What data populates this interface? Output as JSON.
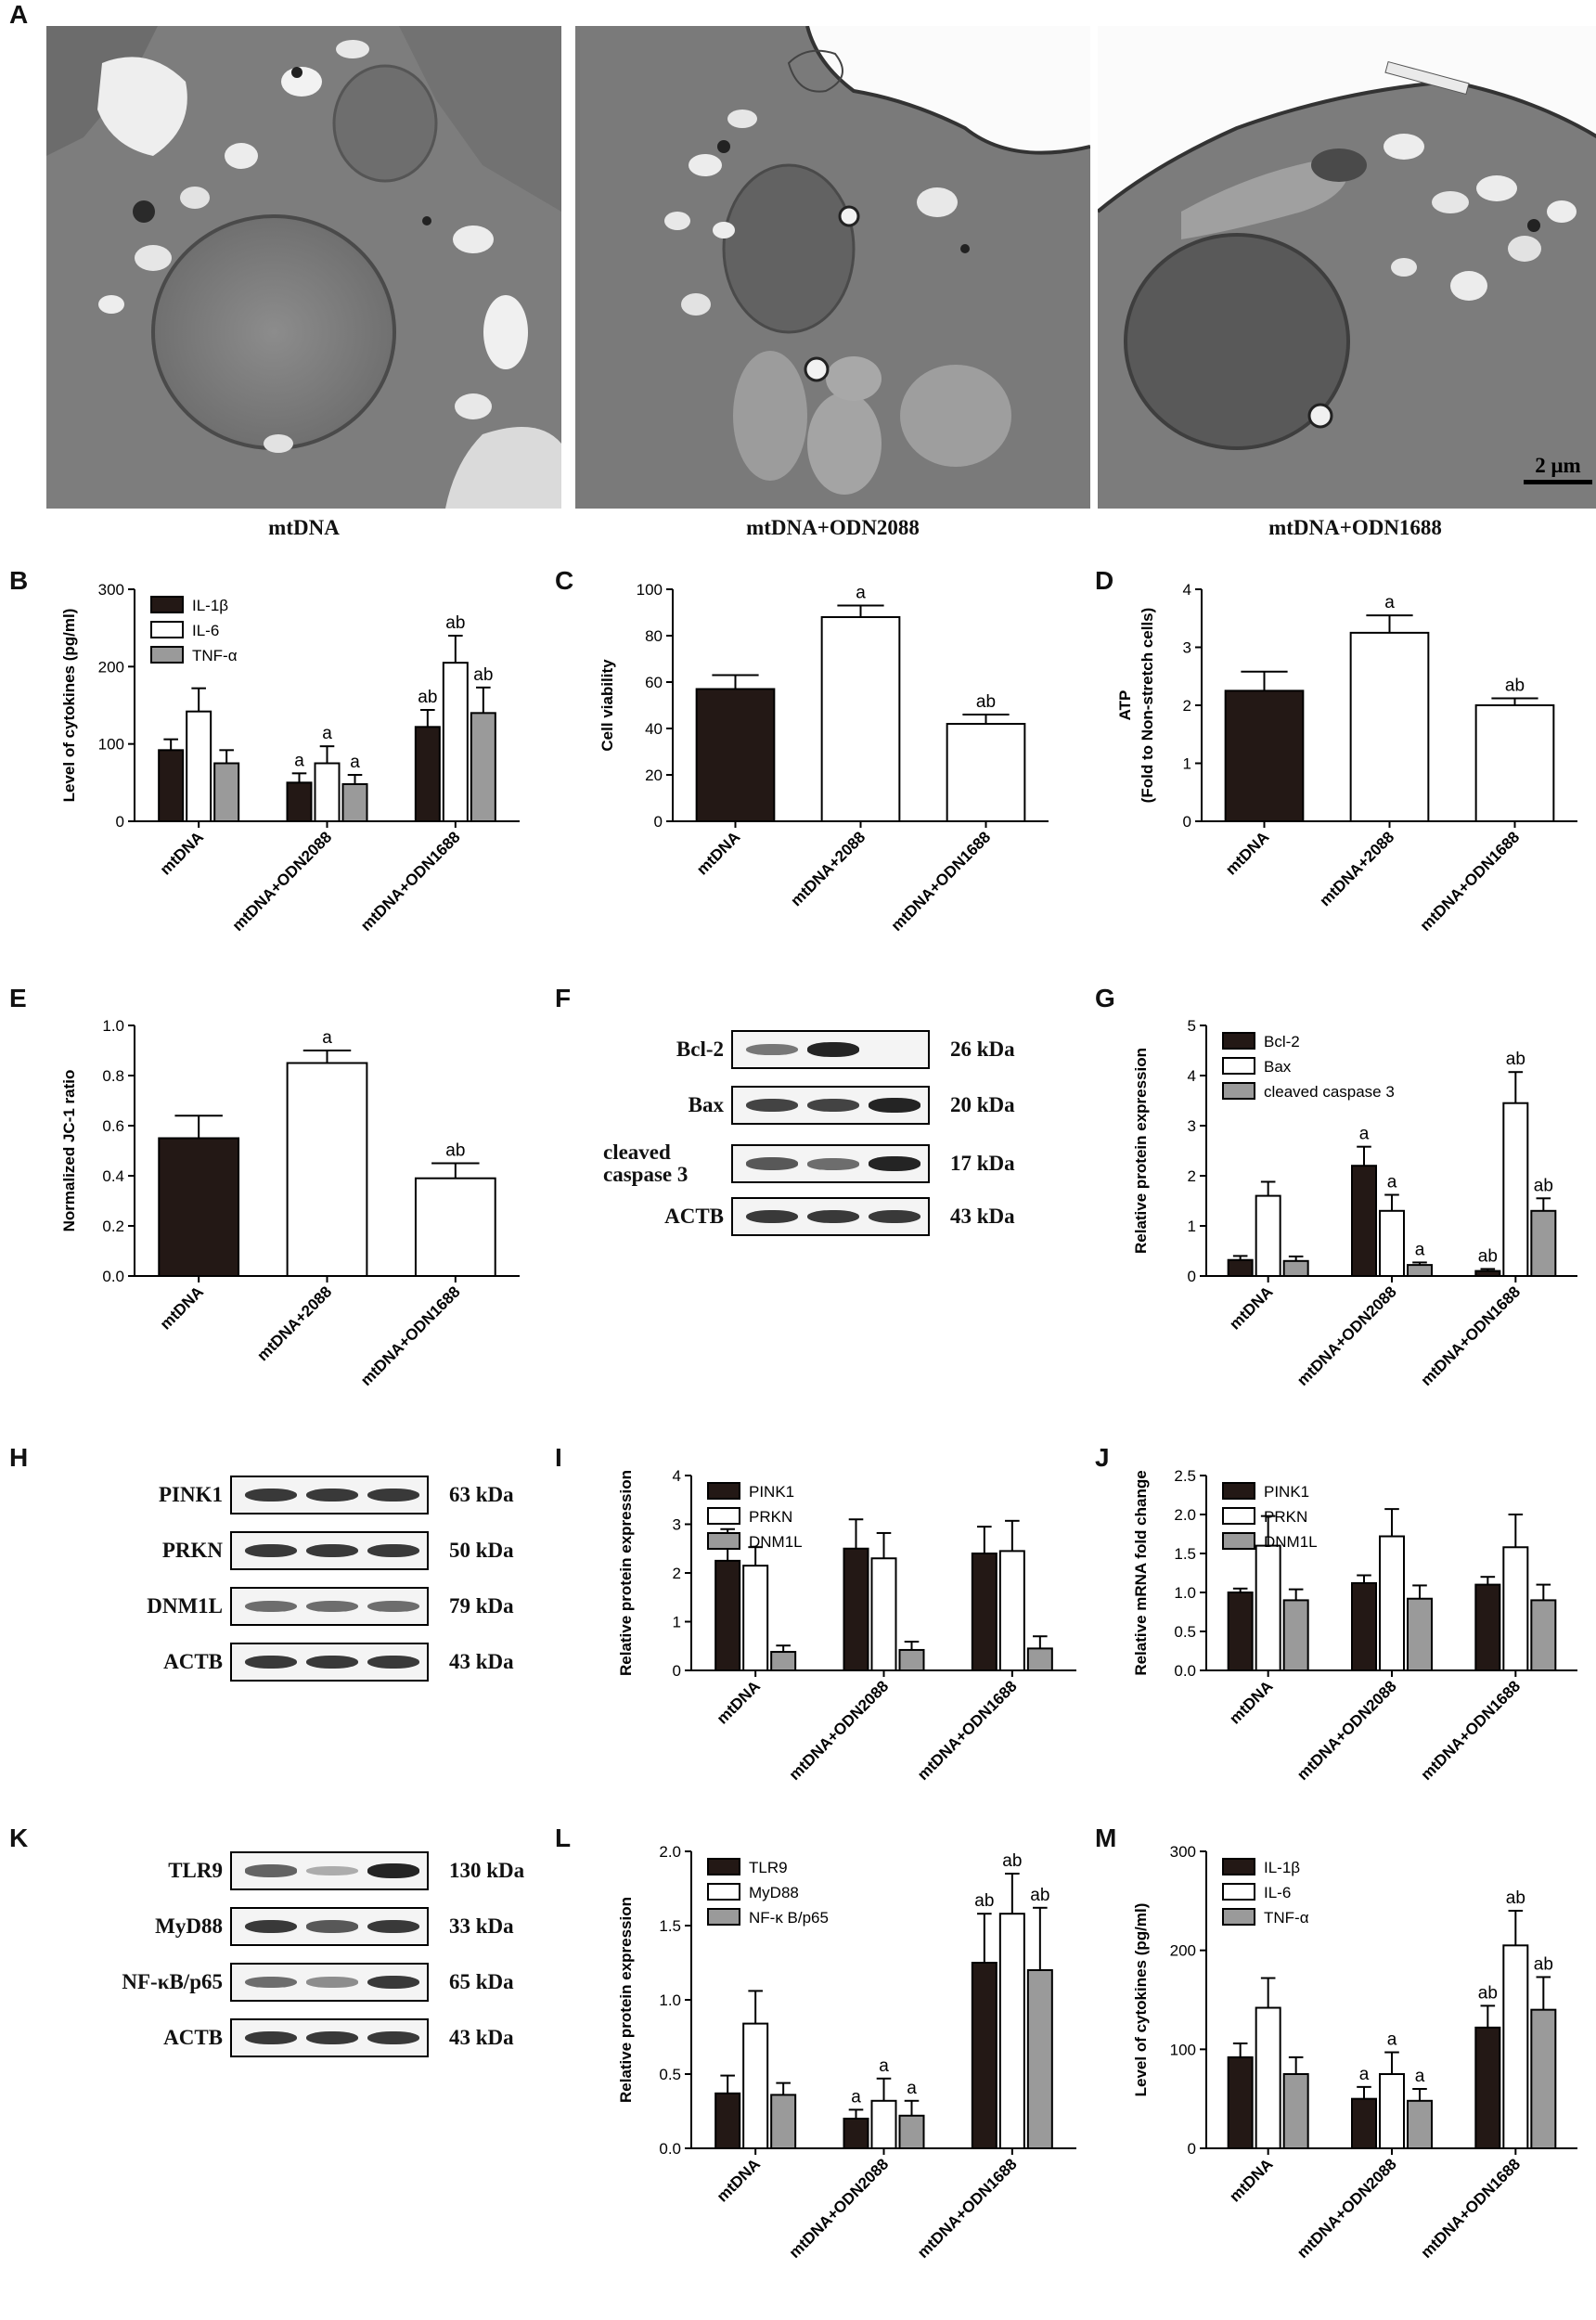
{
  "panels": {
    "A": "A",
    "B": "B",
    "C": "C",
    "D": "D",
    "E": "E",
    "F": "F",
    "G": "G",
    "H": "H",
    "I": "I",
    "J": "J",
    "K": "K",
    "L": "L",
    "M": "M"
  },
  "em": {
    "images": [
      {
        "caption": "mtDNA"
      },
      {
        "caption": "mtDNA+ODN2088"
      },
      {
        "caption": "mtDNA+ODN1688",
        "scalebar": "2 μm"
      }
    ]
  },
  "blots": {
    "F": {
      "rows": [
        {
          "label": "Bcl-2",
          "kda": "26 kDa",
          "intensity": [
            0.55,
            0.95,
            0.0
          ]
        },
        {
          "label": "Bax",
          "kda": "20 kDa",
          "intensity": [
            0.8,
            0.8,
            0.95
          ]
        },
        {
          "label": "cleaved caspase 3",
          "kda": "17 kDa",
          "intensity": [
            0.7,
            0.6,
            0.95
          ]
        },
        {
          "label": "ACTB",
          "kda": "43 kDa",
          "intensity": [
            0.85,
            0.85,
            0.85
          ]
        }
      ]
    },
    "H": {
      "rows": [
        {
          "label": "PINK1",
          "kda": "63 kDa",
          "intensity": [
            0.85,
            0.85,
            0.85
          ]
        },
        {
          "label": "PRKN",
          "kda": "50 kDa",
          "intensity": [
            0.85,
            0.85,
            0.85
          ]
        },
        {
          "label": "DNM1L",
          "kda": "79 kDa",
          "intensity": [
            0.6,
            0.6,
            0.6
          ]
        },
        {
          "label": "ACTB",
          "kda": "43 kDa",
          "intensity": [
            0.85,
            0.85,
            0.85
          ]
        }
      ]
    },
    "K": {
      "rows": [
        {
          "label": "TLR9",
          "kda": "130 kDa",
          "intensity": [
            0.65,
            0.3,
            0.95
          ]
        },
        {
          "label": "MyD88",
          "kda": "33 kDa",
          "intensity": [
            0.85,
            0.7,
            0.85
          ]
        },
        {
          "label": "NF-κB/p65",
          "kda": "65 kDa",
          "intensity": [
            0.6,
            0.45,
            0.85
          ]
        },
        {
          "label": "ACTB",
          "kda": "43 kDa",
          "intensity": [
            0.85,
            0.85,
            0.85
          ]
        }
      ]
    }
  },
  "chart_data": [
    {
      "id": "B",
      "type": "bar",
      "ylabel": "Level of cytokines (pg/ml)",
      "ylim": [
        0,
        300
      ],
      "yticks": [
        0,
        100,
        200,
        300
      ],
      "categories": [
        "mtDNA",
        "mtDNA+ODN2088",
        "mtDNA+ODN1688"
      ],
      "legend": "top-left",
      "series": [
        {
          "name": "IL-1β",
          "fill": "#231815",
          "values": [
            92,
            50,
            122
          ],
          "errors": [
            14,
            12,
            22
          ],
          "labels": [
            "",
            "a",
            "ab"
          ]
        },
        {
          "name": "IL-6",
          "fill": "#ffffff",
          "values": [
            142,
            75,
            205
          ],
          "errors": [
            30,
            22,
            35
          ],
          "labels": [
            "",
            "a",
            "ab"
          ]
        },
        {
          "name": "TNF-α",
          "fill": "#9a9a9a",
          "values": [
            75,
            48,
            140
          ],
          "errors": [
            17,
            12,
            33
          ],
          "labels": [
            "",
            "a",
            "ab"
          ]
        }
      ]
    },
    {
      "id": "C",
      "type": "bar",
      "ylabel": "Cell viability",
      "ylim": [
        0,
        100
      ],
      "yticks": [
        0,
        20,
        40,
        60,
        80,
        100
      ],
      "categories": [
        "mtDNA",
        "mtDNA+2088",
        "mtDNA+ODN1688"
      ],
      "series": [
        {
          "fills": [
            "#231815",
            "#ffffff",
            "#ffffff"
          ],
          "values": [
            57,
            88,
            42
          ],
          "errors": [
            6,
            5,
            4
          ],
          "labels": [
            "",
            "a",
            "ab"
          ]
        }
      ]
    },
    {
      "id": "D",
      "type": "bar",
      "ylabel": [
        "ATP",
        "(Fold to Non-stretch cells)"
      ],
      "ylim": [
        0,
        4
      ],
      "yticks": [
        0,
        1,
        2,
        3,
        4
      ],
      "categories": [
        "mtDNA",
        "mtDNA+2088",
        "mtDNA+ODN1688"
      ],
      "series": [
        {
          "fills": [
            "#231815",
            "#ffffff",
            "#ffffff"
          ],
          "values": [
            2.25,
            3.25,
            2.0
          ],
          "errors": [
            0.33,
            0.3,
            0.12
          ],
          "labels": [
            "",
            "a",
            "ab"
          ]
        }
      ]
    },
    {
      "id": "E",
      "type": "bar",
      "ylabel": "Normalized JC-1 ratio",
      "ylim": [
        0,
        1.0
      ],
      "yticks": [
        0.0,
        0.2,
        0.4,
        0.6,
        0.8,
        1.0
      ],
      "ydec": 1,
      "categories": [
        "mtDNA",
        "mtDNA+2088",
        "mtDNA+ODN1688"
      ],
      "series": [
        {
          "fills": [
            "#231815",
            "#ffffff",
            "#ffffff"
          ],
          "values": [
            0.55,
            0.85,
            0.39
          ],
          "errors": [
            0.09,
            0.05,
            0.06
          ],
          "labels": [
            "",
            "a",
            "ab"
          ]
        }
      ]
    },
    {
      "id": "G",
      "type": "bar",
      "ylabel": "Relative protein expression",
      "ylim": [
        0,
        5
      ],
      "yticks": [
        0,
        1,
        2,
        3,
        4,
        5
      ],
      "categories": [
        "mtDNA",
        "mtDNA+ODN2088",
        "mtDNA+ODN1688"
      ],
      "legend": "top-left",
      "series": [
        {
          "name": "Bcl-2",
          "fill": "#231815",
          "values": [
            0.32,
            2.2,
            0.1
          ],
          "errors": [
            0.08,
            0.38,
            0.04
          ],
          "labels": [
            "",
            "a",
            "ab"
          ]
        },
        {
          "name": "Bax",
          "fill": "#ffffff",
          "values": [
            1.6,
            1.3,
            3.45
          ],
          "errors": [
            0.28,
            0.32,
            0.62
          ],
          "labels": [
            "",
            "a",
            "ab"
          ]
        },
        {
          "name": "cleaved caspase 3",
          "fill": "#9a9a9a",
          "values": [
            0.3,
            0.22,
            1.3
          ],
          "errors": [
            0.09,
            0.05,
            0.25
          ],
          "labels": [
            "",
            "a",
            "ab"
          ]
        }
      ]
    },
    {
      "id": "I",
      "type": "bar",
      "ylabel": "Relative protein expression",
      "ylim": [
        0,
        4
      ],
      "yticks": [
        0,
        1,
        2,
        3,
        4
      ],
      "categories": [
        "mtDNA",
        "mtDNA+ODN2088",
        "mtDNA+ODN1688"
      ],
      "legend": "top-left",
      "series": [
        {
          "name": "PINK1",
          "fill": "#231815",
          "values": [
            2.25,
            2.5,
            2.4
          ],
          "errors": [
            0.65,
            0.6,
            0.55
          ]
        },
        {
          "name": "PRKN",
          "fill": "#ffffff",
          "values": [
            2.15,
            2.3,
            2.45
          ],
          "errors": [
            0.38,
            0.52,
            0.62
          ]
        },
        {
          "name": "DNM1L",
          "fill": "#9a9a9a",
          "values": [
            0.38,
            0.42,
            0.45
          ],
          "errors": [
            0.13,
            0.17,
            0.25
          ]
        }
      ]
    },
    {
      "id": "J",
      "type": "bar",
      "ylabel": "Relative mRNA fold change",
      "ylim": [
        0,
        2.5
      ],
      "yticks": [
        0.0,
        0.5,
        1.0,
        1.5,
        2.0,
        2.5
      ],
      "ydec": 1,
      "categories": [
        "mtDNA",
        "mtDNA+ODN2088",
        "mtDNA+ODN1688"
      ],
      "legend": "top-left",
      "series": [
        {
          "name": "PINK1",
          "fill": "#231815",
          "values": [
            1.0,
            1.12,
            1.1
          ],
          "errors": [
            0.05,
            0.1,
            0.1
          ]
        },
        {
          "name": "PRKN",
          "fill": "#ffffff",
          "values": [
            1.6,
            1.72,
            1.58
          ],
          "errors": [
            0.38,
            0.35,
            0.42
          ]
        },
        {
          "name": "DNM1L",
          "fill": "#9a9a9a",
          "values": [
            0.9,
            0.92,
            0.9
          ],
          "errors": [
            0.14,
            0.17,
            0.2
          ]
        }
      ]
    },
    {
      "id": "L",
      "type": "bar",
      "ylabel": "Relative protein expression",
      "ylim": [
        0,
        2.0
      ],
      "yticks": [
        0.0,
        0.5,
        1.0,
        1.5,
        2.0
      ],
      "ydec": 1,
      "categories": [
        "mtDNA",
        "mtDNA+ODN2088",
        "mtDNA+ODN1688"
      ],
      "legend": "top-left",
      "series": [
        {
          "name": "TLR9",
          "fill": "#231815",
          "values": [
            0.37,
            0.2,
            1.25
          ],
          "errors": [
            0.12,
            0.06,
            0.33
          ],
          "labels": [
            "",
            "a",
            "ab"
          ]
        },
        {
          "name": "MyD88",
          "fill": "#ffffff",
          "values": [
            0.84,
            0.32,
            1.58
          ],
          "errors": [
            0.22,
            0.15,
            0.27
          ],
          "labels": [
            "",
            "a",
            "ab"
          ]
        },
        {
          "name": "NF-κ B/p65",
          "fill": "#9a9a9a",
          "values": [
            0.36,
            0.22,
            1.2
          ],
          "errors": [
            0.08,
            0.1,
            0.42
          ],
          "labels": [
            "",
            "a",
            "ab"
          ]
        }
      ]
    },
    {
      "id": "M",
      "type": "bar",
      "ylabel": "Level of cytokines (pg/ml)",
      "ylim": [
        0,
        300
      ],
      "yticks": [
        0,
        100,
        200,
        300
      ],
      "categories": [
        "mtDNA",
        "mtDNA+ODN2088",
        "mtDNA+ODN1688"
      ],
      "legend": "top-left",
      "series": [
        {
          "name": "IL-1β",
          "fill": "#231815",
          "values": [
            92,
            50,
            122
          ],
          "errors": [
            14,
            12,
            22
          ],
          "labels": [
            "",
            "a",
            "ab"
          ]
        },
        {
          "name": "IL-6",
          "fill": "#ffffff",
          "values": [
            142,
            75,
            205
          ],
          "errors": [
            30,
            22,
            35
          ],
          "labels": [
            "",
            "a",
            "ab"
          ]
        },
        {
          "name": "TNF-α",
          "fill": "#9a9a9a",
          "values": [
            75,
            48,
            140
          ],
          "errors": [
            17,
            12,
            33
          ],
          "labels": [
            "",
            "a",
            "ab"
          ]
        }
      ]
    }
  ]
}
